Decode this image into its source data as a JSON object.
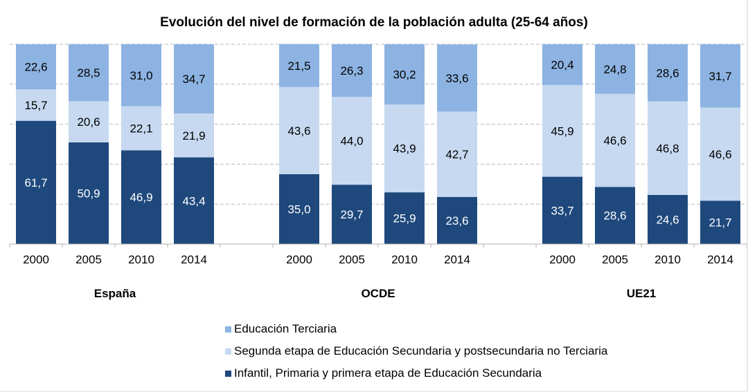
{
  "chart_data": {
    "type": "bar",
    "stacked": true,
    "percent_stacked": true,
    "title": "Evolución del nivel de formación de la población adulta (25-64 años)",
    "xlabel": "",
    "ylabel": "",
    "ylim": [
      0,
      100
    ],
    "grid": true,
    "legend_position": "bottom",
    "groups": [
      {
        "name": "España",
        "categories": [
          "2000",
          "2005",
          "2010",
          "2014"
        ]
      },
      {
        "name": "OCDE",
        "categories": [
          "2000",
          "2005",
          "2010",
          "2014"
        ]
      },
      {
        "name": "UE21",
        "categories": [
          "2000",
          "2005",
          "2010",
          "2014"
        ]
      }
    ],
    "series": [
      {
        "name": "Infantil, Primaria y primera etapa de Educación Secundaria",
        "color": "#1f497d",
        "label_color": "#ffffff",
        "values": [
          [
            61.7,
            50.9,
            46.9,
            43.4
          ],
          [
            35.0,
            29.7,
            25.9,
            23.6
          ],
          [
            33.7,
            28.6,
            24.6,
            21.7
          ]
        ],
        "labels": [
          [
            "61,7",
            "50,9",
            "46,9",
            "43,4"
          ],
          [
            "35,0",
            "29,7",
            "25,9",
            "23,6"
          ],
          [
            "33,7",
            "28,6",
            "24,6",
            "21,7"
          ]
        ]
      },
      {
        "name": "Segunda etapa de Educación Secundaria y postsecundaria no Terciaria",
        "color": "#c6d9f0",
        "label_color": "#000000",
        "values": [
          [
            15.7,
            20.6,
            22.1,
            21.9
          ],
          [
            43.6,
            44.0,
            43.9,
            42.7
          ],
          [
            45.9,
            46.6,
            46.8,
            46.6
          ]
        ],
        "labels": [
          [
            "15,7",
            "20,6",
            "22,1",
            "21,9"
          ],
          [
            "43,6",
            "44,0",
            "43,9",
            "42,7"
          ],
          [
            "45,9",
            "46,6",
            "46,8",
            "46,6"
          ]
        ]
      },
      {
        "name": "Educación Terciaria",
        "color": "#8db3e2",
        "label_color": "#000000",
        "values": [
          [
            22.6,
            28.5,
            31.0,
            34.7
          ],
          [
            21.5,
            26.3,
            30.2,
            33.6
          ],
          [
            20.4,
            24.8,
            28.6,
            31.7
          ]
        ],
        "labels": [
          [
            "22,6",
            "28,5",
            "31,0",
            "34,7"
          ],
          [
            "21,5",
            "26,3",
            "30,2",
            "33,6"
          ],
          [
            "20,4",
            "24,8",
            "28,6",
            "31,7"
          ]
        ]
      }
    ],
    "legend": [
      {
        "label": "Educación Terciaria",
        "color": "#8db3e2"
      },
      {
        "label": "Segunda etapa de Educación Secundaria y postsecundaria no Terciaria",
        "color": "#c6d9f0"
      },
      {
        "label": "Infantil, Primaria y primera etapa de Educación Secundaria",
        "color": "#1f497d"
      }
    ]
  }
}
